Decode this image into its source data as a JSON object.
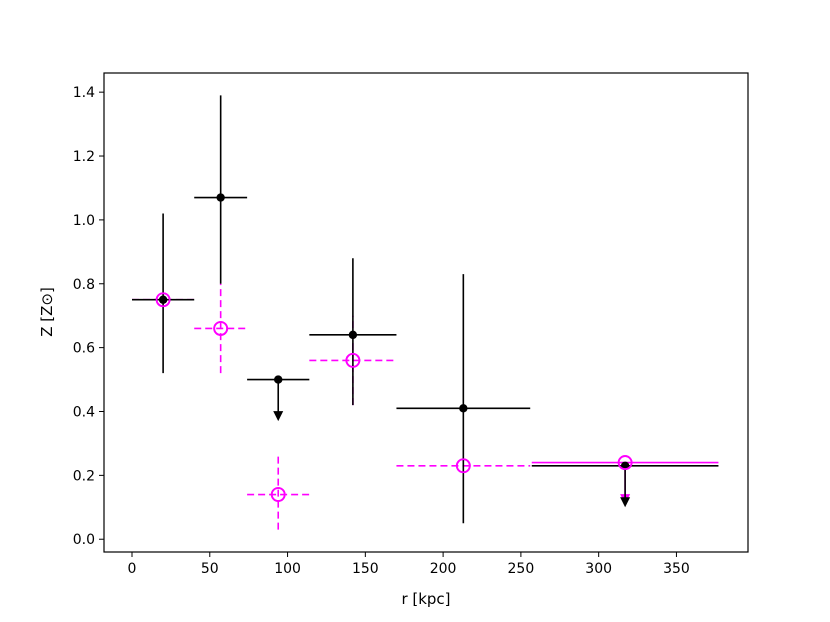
{
  "chart_data": {
    "type": "scatter",
    "xlabel": "r [kpc]",
    "ylabel": "Z [Z⊙]",
    "xlim": [
      -18,
      396
    ],
    "ylim": [
      -0.04,
      1.46
    ],
    "x_ticks": [
      0,
      50,
      100,
      150,
      200,
      250,
      300,
      350
    ],
    "x_tick_labels": [
      "0",
      "50",
      "100",
      "150",
      "200",
      "250",
      "300",
      "350"
    ],
    "y_ticks": [
      0.0,
      0.2,
      0.4,
      0.6,
      0.8,
      1.0,
      1.2,
      1.4
    ],
    "y_tick_labels": [
      "0.0",
      "0.2",
      "0.4",
      "0.6",
      "0.8",
      "1.0",
      "1.2",
      "1.4"
    ],
    "grid": false,
    "series": [
      {
        "marker": "filled-circle",
        "color": "#000000",
        "linestyle": "solid",
        "points": [
          {
            "x": 20,
            "y": 0.75,
            "xerr": [
              20,
              20
            ],
            "yerr": [
              0.23,
              0.27
            ]
          },
          {
            "x": 57,
            "y": 1.07,
            "xerr": [
              17,
              17
            ],
            "yerr": [
              0.27,
              0.32
            ]
          },
          {
            "x": 94,
            "y": 0.5,
            "xerr": [
              20,
              20
            ],
            "upper_limit": true
          },
          {
            "x": 142,
            "y": 0.64,
            "xerr": [
              28,
              28
            ],
            "yerr": [
              0.22,
              0.24
            ]
          },
          {
            "x": 213,
            "y": 0.41,
            "xerr": [
              43,
              43
            ],
            "yerr": [
              0.36,
              0.42
            ]
          },
          {
            "x": 317,
            "y": 0.23,
            "xerr": [
              60,
              60
            ],
            "upper_limit": true
          }
        ]
      },
      {
        "marker": "open-circle",
        "color": "#ff00ff",
        "linestyle": "dashed",
        "points": [
          {
            "x": 20,
            "y": 0.75,
            "xerr": [
              20,
              20
            ]
          },
          {
            "x": 57,
            "y": 0.66,
            "xerr": [
              17,
              17
            ],
            "yerr": [
              0.14,
              0.14
            ]
          },
          {
            "x": 94,
            "y": 0.14,
            "xerr": [
              20,
              20
            ],
            "yerr": [
              0.11,
              0.12
            ]
          },
          {
            "x": 142,
            "y": 0.56,
            "xerr": [
              28,
              28
            ],
            "yerr": [
              0.14,
              0.14
            ]
          },
          {
            "x": 213,
            "y": 0.23,
            "xerr": [
              43,
              43
            ]
          },
          {
            "x": 317,
            "y": 0.24,
            "xerr": [
              60,
              60
            ],
            "upper_limit": true,
            "linestyle": "solid"
          }
        ]
      }
    ]
  }
}
